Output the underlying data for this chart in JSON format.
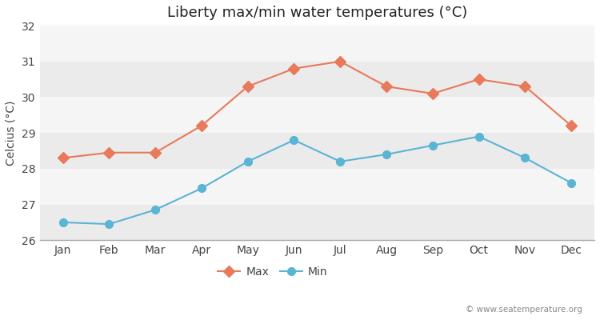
{
  "title": "Liberty max/min water temperatures (°C)",
  "ylabel": "Celcius (°C)",
  "months": [
    "Jan",
    "Feb",
    "Mar",
    "Apr",
    "May",
    "Jun",
    "Jul",
    "Aug",
    "Sep",
    "Oct",
    "Nov",
    "Dec"
  ],
  "max_values": [
    28.3,
    28.45,
    28.45,
    29.2,
    30.3,
    30.8,
    31.0,
    30.3,
    30.1,
    30.5,
    30.3,
    29.2
  ],
  "min_values": [
    26.5,
    26.45,
    26.85,
    27.45,
    28.2,
    28.8,
    28.2,
    28.4,
    28.65,
    28.9,
    28.3,
    27.6
  ],
  "max_color": "#e8795a",
  "min_color": "#5ab4d4",
  "bg_color": "#ffffff",
  "band_colors": [
    "#ebebeb",
    "#f5f5f5"
  ],
  "ylim": [
    26,
    32
  ],
  "yticks": [
    26,
    27,
    28,
    29,
    30,
    31,
    32
  ],
  "legend_labels": [
    "Max",
    "Min"
  ],
  "watermark": "© www.seatemperature.org",
  "title_fontsize": 13,
  "label_fontsize": 10,
  "tick_fontsize": 10
}
